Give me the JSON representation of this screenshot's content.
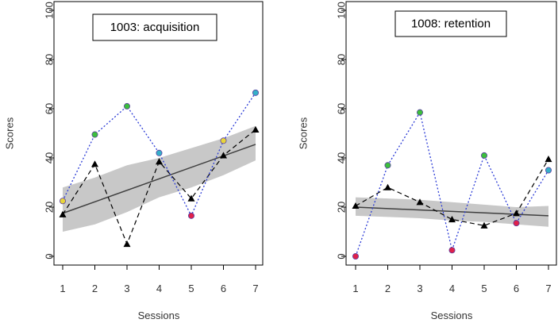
{
  "colors": {
    "band": "#c8c8c8",
    "regression": "#404040",
    "dashed_series": "#000000",
    "dotted_series": "#2b3bd6",
    "marker_yellow": "#e8d53a",
    "marker_green": "#3cbf3c",
    "marker_teal": "#35b0c8",
    "marker_red": "#e0204a"
  },
  "chart_data": [
    {
      "type": "line",
      "title": "1003: acquisition",
      "xlabel": "Sessions",
      "ylabel": "Scores",
      "xlim": [
        1,
        7
      ],
      "ylim": [
        0,
        100
      ],
      "x_ticks": [
        1,
        2,
        3,
        4,
        5,
        6,
        7
      ],
      "y_ticks": [
        0,
        20,
        40,
        60,
        80,
        100
      ],
      "x": [
        1,
        2,
        3,
        4,
        5,
        6,
        7
      ],
      "series": [
        {
          "name": "triangles-dashed",
          "style": "dashed",
          "marker": "triangle",
          "values": [
            17,
            37.5,
            5,
            38.5,
            23.5,
            41,
            51.5
          ]
        },
        {
          "name": "circles-dotted",
          "style": "dotted",
          "marker": "circle",
          "values": [
            22.5,
            49.5,
            61,
            42,
            16.5,
            47,
            66.5
          ],
          "marker_colors": [
            "yellow",
            "green",
            "green",
            "teal",
            "red",
            "yellow",
            "teal"
          ]
        }
      ],
      "regression": {
        "y_at_x1": 17.5,
        "y_at_x7": 45.5
      },
      "band": {
        "lower": [
          10,
          13,
          18,
          24,
          28,
          33,
          39
        ],
        "upper": [
          28,
          32,
          37,
          40,
          44,
          48,
          53
        ]
      }
    },
    {
      "type": "line",
      "title": "1008: retention",
      "xlabel": "Sessions",
      "ylabel": "Scores",
      "xlim": [
        1,
        7
      ],
      "ylim": [
        0,
        100
      ],
      "x_ticks": [
        1,
        2,
        3,
        4,
        5,
        6,
        7
      ],
      "y_ticks": [
        0,
        20,
        40,
        60,
        80,
        100
      ],
      "x": [
        1,
        2,
        3,
        4,
        5,
        6,
        7
      ],
      "series": [
        {
          "name": "triangles-dashed",
          "style": "dashed",
          "marker": "triangle",
          "values": [
            20.5,
            28,
            22,
            15,
            12.5,
            17.5,
            39.5
          ]
        },
        {
          "name": "circles-dotted",
          "style": "dotted",
          "marker": "circle",
          "values": [
            0,
            37,
            58.5,
            2.5,
            41,
            13.5,
            35
          ],
          "marker_colors": [
            "red",
            "green",
            "green",
            "red",
            "green",
            "red",
            "teal"
          ]
        }
      ],
      "regression": {
        "y_at_x1": 20,
        "y_at_x7": 16.5
      },
      "band": {
        "lower": [
          16.5,
          16,
          15.5,
          14.5,
          14,
          13,
          12
        ],
        "upper": [
          24,
          23.5,
          23,
          22,
          21,
          20,
          20.5
        ]
      }
    }
  ]
}
